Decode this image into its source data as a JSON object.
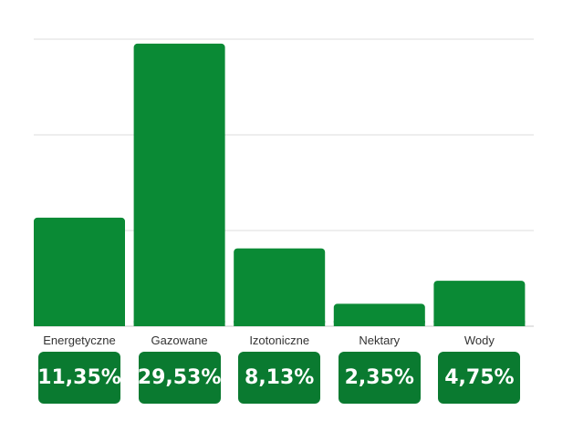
{
  "chart_data": {
    "type": "bar",
    "categories": [
      "Energetyczne",
      "Gazowane",
      "Izotoniczne",
      "Nektary",
      "Wody"
    ],
    "values": [
      11.35,
      29.53,
      8.13,
      2.35,
      4.75
    ],
    "value_labels": [
      "11,35%",
      "29,53%",
      "8,13%",
      "2,35%",
      "4,75%"
    ],
    "title": "",
    "xlabel": "",
    "ylabel": "",
    "ylim": [
      0,
      30
    ],
    "grid": true,
    "legend": "none",
    "colors": {
      "bar": "#0a8a35",
      "badge": "#0a7a30",
      "grid": "#dcdcdc",
      "label": "#333333"
    }
  }
}
